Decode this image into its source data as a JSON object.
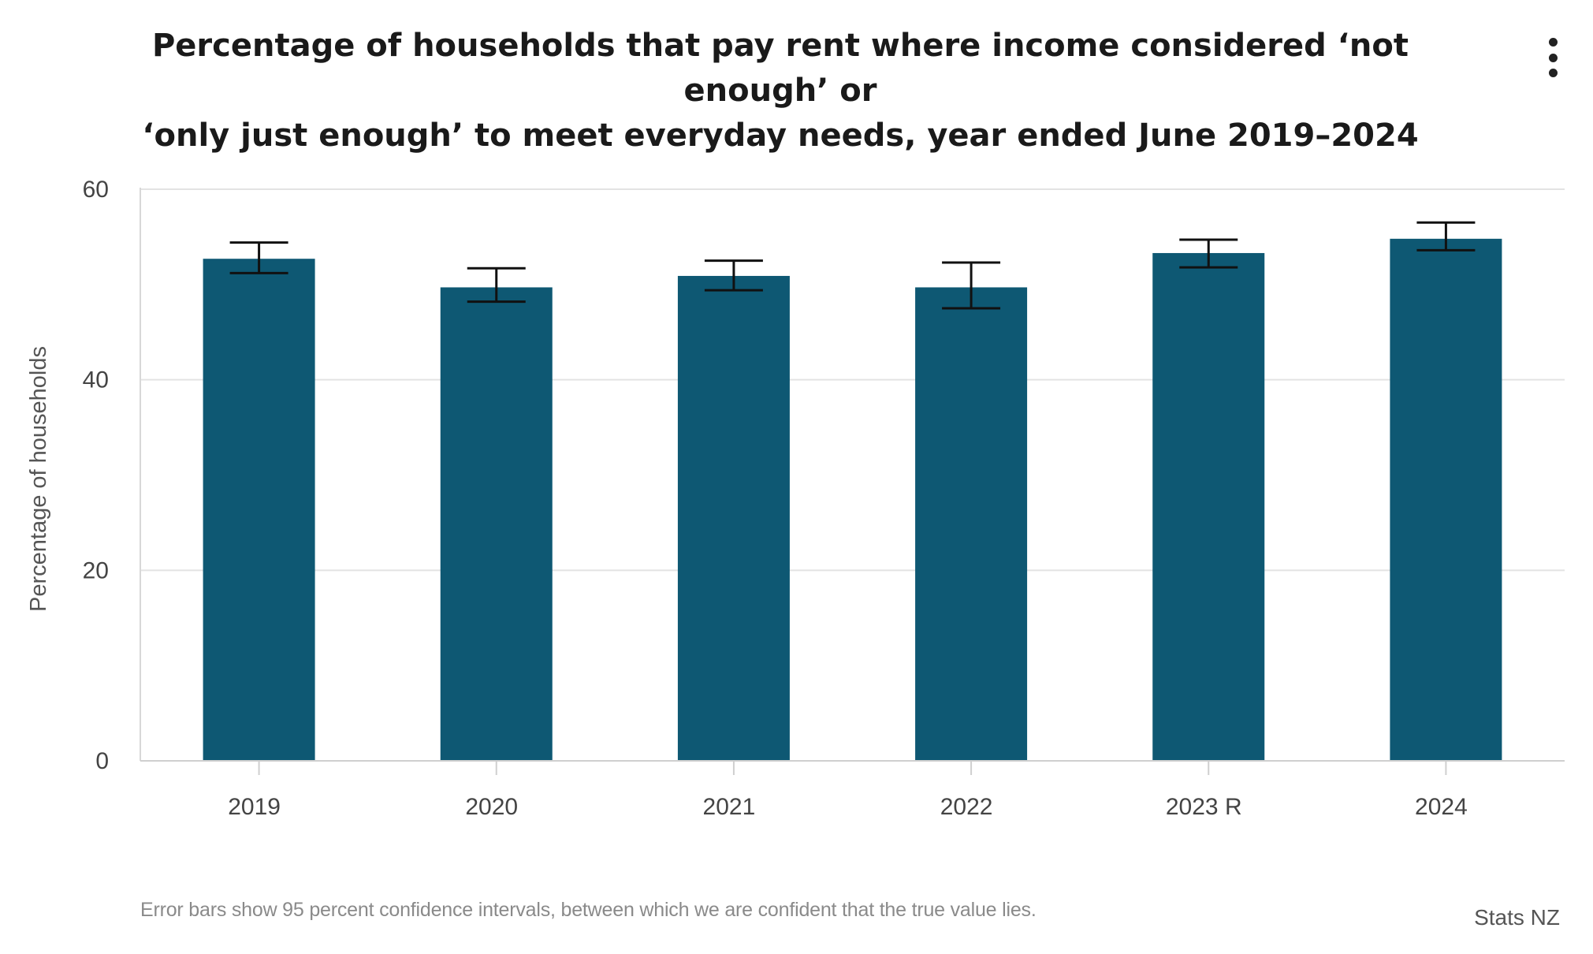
{
  "header": {
    "title_line1": "Percentage of households that pay rent where income considered ‘not enough’ or",
    "title_line2": "‘only just enough’ to meet everyday needs, year ended June 2019–2024",
    "menu_icon": "more-vertical-icon"
  },
  "chart_data": {
    "type": "bar",
    "title": "Percentage of households that pay rent where income considered ‘not enough’ or ‘only just enough’ to meet everyday needs, year ended June 2019–2024",
    "xlabel": "",
    "ylabel": "Percentage of households",
    "ylim": [
      0,
      60
    ],
    "yticks": [
      0,
      20,
      40,
      60
    ],
    "grid": true,
    "categories": [
      "2019",
      "2020",
      "2021",
      "2022",
      "2023 R",
      "2024"
    ],
    "values": [
      52.7,
      49.7,
      50.9,
      49.7,
      53.3,
      54.8
    ],
    "error_bars": [
      {
        "low": 51.2,
        "high": 54.4
      },
      {
        "low": 48.2,
        "high": 51.7
      },
      {
        "low": 49.4,
        "high": 52.5
      },
      {
        "low": 47.5,
        "high": 52.3
      },
      {
        "low": 51.8,
        "high": 54.7
      },
      {
        "low": 53.6,
        "high": 56.5
      }
    ],
    "bar_color": "#0e5873"
  },
  "footer": {
    "note": "Error bars show 95 percent confidence intervals, between which we are confident that the true value lies.",
    "source": "Stats NZ"
  }
}
